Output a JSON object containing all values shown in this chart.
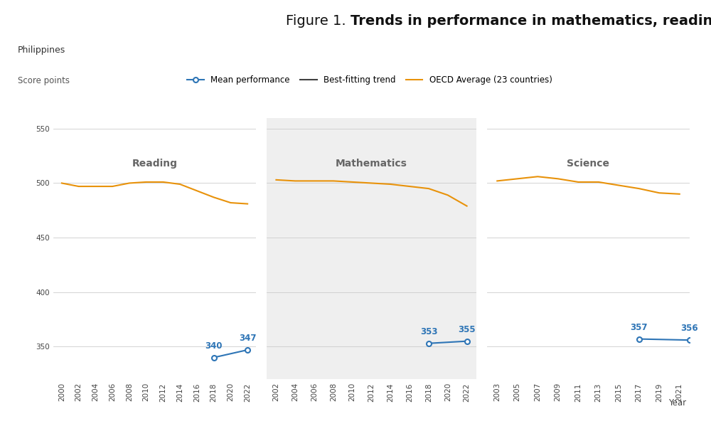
{
  "title_prefix": "Figure 1. ",
  "title_bold": "Trends in performance in mathematics, reading and science",
  "subtitle": "Philippines",
  "ylabel": "Score points",
  "xlabel": "Year",
  "ylim": [
    320,
    560
  ],
  "yticks": [
    350,
    400,
    450,
    500,
    550
  ],
  "background_color": "#ffffff",
  "shaded_color": "#EFEFEF",
  "legend_items": [
    "Mean performance",
    "Best-fitting trend",
    "OECD Average (23 countries)"
  ],
  "reading": {
    "label": "Reading",
    "xticks": [
      "2000",
      "2002",
      "2004",
      "2006",
      "2008",
      "2010",
      "2012",
      "2014",
      "2016",
      "2018",
      "2020",
      "2022"
    ],
    "oecd_years": [
      2000,
      2002,
      2004,
      2006,
      2008,
      2010,
      2012,
      2014,
      2016,
      2018,
      2020,
      2022
    ],
    "oecd_values": [
      500,
      497,
      497,
      497,
      500,
      501,
      501,
      499,
      493,
      487,
      482,
      481
    ],
    "mean_years": [
      2018,
      2022
    ],
    "mean_values": [
      340,
      347
    ],
    "bg": false
  },
  "mathematics": {
    "label": "Mathematics",
    "xticks": [
      "2002",
      "2004",
      "2006",
      "2008",
      "2010",
      "2012",
      "2014",
      "2016",
      "2018",
      "2020",
      "2022"
    ],
    "oecd_years": [
      2002,
      2004,
      2006,
      2008,
      2010,
      2012,
      2014,
      2016,
      2018,
      2020,
      2022
    ],
    "oecd_values": [
      503,
      502,
      502,
      502,
      501,
      500,
      499,
      497,
      495,
      489,
      479
    ],
    "mean_years": [
      2018,
      2022
    ],
    "mean_values": [
      353,
      355
    ],
    "bg": true
  },
  "science": {
    "label": "Science",
    "xticks": [
      "2003",
      "2005",
      "2007",
      "2009",
      "2011",
      "2013",
      "2015",
      "2017",
      "2019",
      "2021"
    ],
    "oecd_years": [
      2003,
      2005,
      2007,
      2009,
      2011,
      2013,
      2015,
      2017,
      2019,
      2021
    ],
    "oecd_values": [
      502,
      504,
      506,
      504,
      501,
      501,
      498,
      495,
      491,
      490
    ],
    "mean_years": [
      2017,
      2022
    ],
    "mean_values": [
      357,
      356
    ],
    "bg": false
  },
  "oecd_color": "#E8920A",
  "mean_color": "#2E75B6",
  "trend_color": "#404040",
  "label_color": "#2E75B6",
  "section_label_color": "#666666",
  "title_fontsize": 14,
  "subtitle_fontsize": 9,
  "axis_label_fontsize": 8.5,
  "tick_fontsize": 7.5,
  "section_label_fontsize": 10,
  "annotation_fontsize": 8.5
}
